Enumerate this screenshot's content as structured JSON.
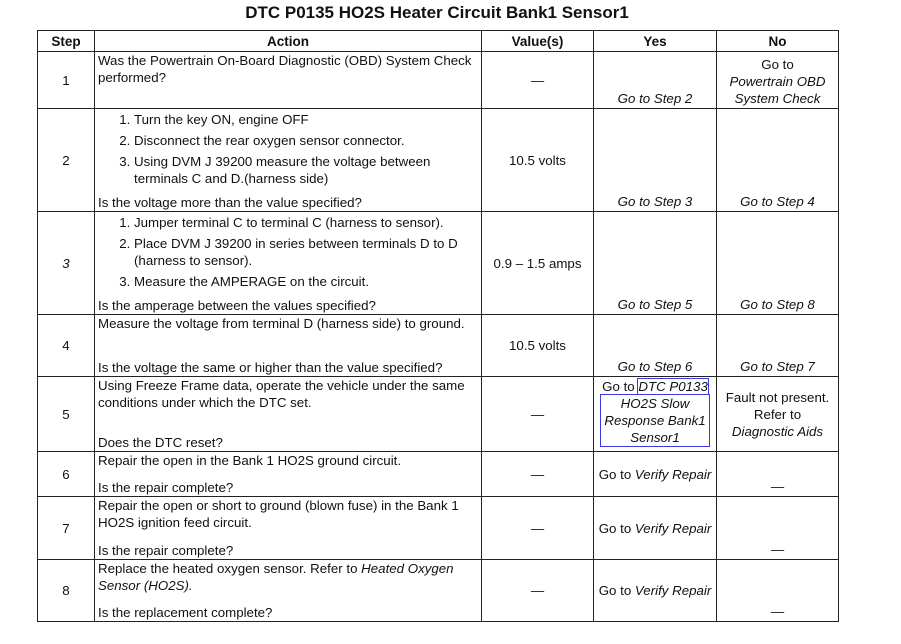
{
  "title": "DTC P0135 HO2S Heater Circuit Bank1 Sensor1",
  "headers": {
    "step": "Step",
    "action": "Action",
    "values": "Value(s)",
    "yes": "Yes",
    "no": "No"
  },
  "rows": [
    {
      "step": "1",
      "action": {
        "intro": "Was the Powertrain On-Board Diagnostic (OBD) System Check performed?",
        "list": [],
        "question": ""
      },
      "value": "—",
      "yes": {
        "prefix": "",
        "link": "Go to Step 2",
        "extra": ""
      },
      "no": {
        "prefix": "Go to",
        "link": "Powertrain OBD System Check"
      }
    },
    {
      "step": "2",
      "action": {
        "intro": "",
        "list": [
          "Turn the key ON, engine OFF",
          "Disconnect the rear oxygen sensor connector.",
          "Using DVM J 39200 measure the voltage between terminals C and D.(harness side)"
        ],
        "question": "Is the voltage more than the value specified?"
      },
      "value": "10.5 volts",
      "yes": {
        "prefix": "",
        "link": "Go to Step 3"
      },
      "no": {
        "prefix": "",
        "link": "Go to Step 4"
      }
    },
    {
      "step": "3",
      "action": {
        "intro": "",
        "list": [
          "Jumper terminal C to terminal C (harness to sensor).",
          "Place DVM J 39200 in series between terminals D to D (harness to sensor).",
          "Measure the AMPERAGE on the circuit."
        ],
        "question": "Is the amperage between the values specified?"
      },
      "value": "0.9 – 1.5 amps",
      "yes": {
        "prefix": "",
        "link": "Go to Step 5"
      },
      "no": {
        "prefix": "",
        "link": "Go to Step 8"
      }
    },
    {
      "step": "4",
      "action": {
        "intro": "Measure the voltage from terminal D (harness side) to ground.",
        "list": [],
        "question": "Is the voltage the same or higher than the value specified?"
      },
      "value": "10.5 volts",
      "yes": {
        "prefix": "",
        "link": "Go to Step 6"
      },
      "no": {
        "prefix": "",
        "link": "Go to Step 7"
      }
    },
    {
      "step": "5",
      "action": {
        "intro": "Using Freeze Frame data, operate the vehicle under the same conditions under which the DTC set.",
        "list": [],
        "question": "Does the DTC reset?"
      },
      "value": "—",
      "yes": {
        "prefix": "Go to",
        "link": "DTC P0133",
        "extra": "HO2S Slow Response Bank1 Sensor1"
      },
      "no": {
        "prefix": "Fault not present. Refer to",
        "link": "Diagnostic Aids"
      }
    },
    {
      "step": "6",
      "action": {
        "intro": "Repair the open in the Bank 1 HO2S ground circuit.",
        "list": [],
        "question": "Is the repair complete?"
      },
      "value": "—",
      "yes": {
        "prefix": "Go to",
        "link": "Verify Repair"
      },
      "no": {
        "prefix": "",
        "link": "—"
      }
    },
    {
      "step": "7",
      "action": {
        "intro": "Repair the open or short to ground (blown fuse) in the Bank 1 HO2S ignition feed circuit.",
        "list": [],
        "question": "Is the repair complete?"
      },
      "value": "—",
      "yes": {
        "prefix": "Go to",
        "link": "Verify Repair"
      },
      "no": {
        "prefix": "",
        "link": "—"
      }
    },
    {
      "step": "8",
      "action": {
        "intro": "Replace the heated oxygen sensor. Refer to",
        "intro_link": "Heated Oxygen Sensor (HO2S).",
        "list": [],
        "question": "Is the replacement complete?"
      },
      "value": "—",
      "yes": {
        "prefix": "Go to",
        "link": "Verify Repair"
      },
      "no": {
        "prefix": "",
        "link": "—"
      }
    }
  ]
}
